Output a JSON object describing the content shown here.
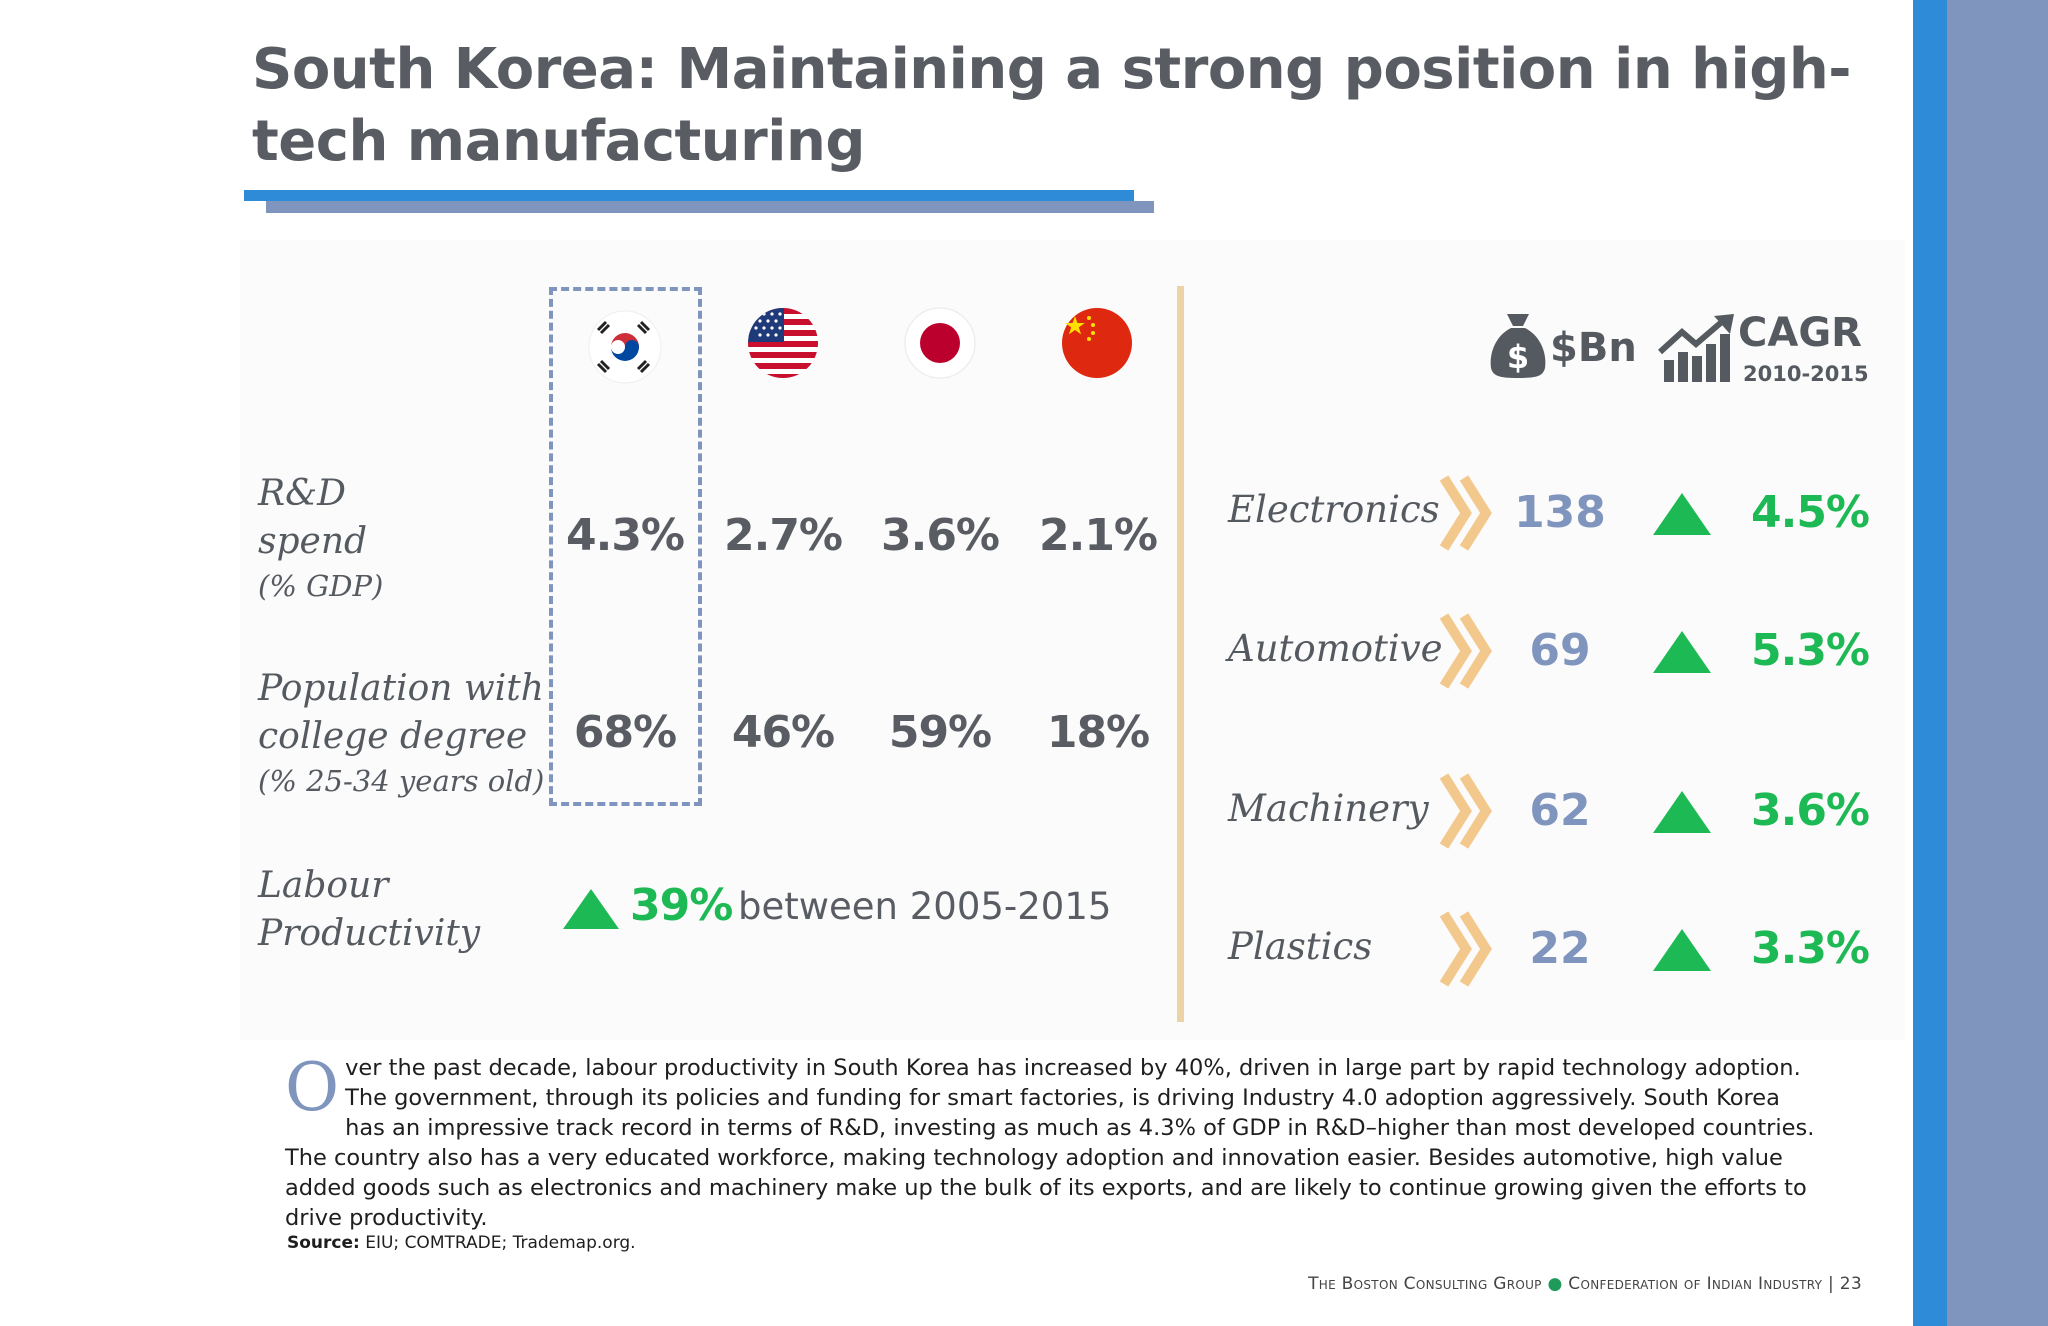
{
  "title": "South Korea: Maintaining a strong position in high-tech manufacturing",
  "colors": {
    "accent_blue": "#2e8bd8",
    "accent_grey_blue": "#7f95be",
    "growth_green": "#1db954",
    "divider_tan": "#edd2a6"
  },
  "countries": [
    {
      "name": "South Korea",
      "icon": "south-korea-flag-icon"
    },
    {
      "name": "United States",
      "icon": "us-flag-icon"
    },
    {
      "name": "Japan",
      "icon": "japan-flag-icon"
    },
    {
      "name": "China",
      "icon": "china-flag-icon"
    }
  ],
  "rd_spend": {
    "label": "R&D",
    "label2": "spend",
    "sub": "(% GDP)",
    "values": [
      "4.3%",
      "2.7%",
      "3.6%",
      "2.1%"
    ]
  },
  "college_degree": {
    "label": "Population with",
    "label2": "college degree",
    "sub": "(% 25-34 years old)",
    "values": [
      "68%",
      "46%",
      "59%",
      "18%"
    ]
  },
  "labour_productivity": {
    "label": "Labour",
    "label2": "Productivity",
    "value": "39%",
    "text": "between 2005-2015"
  },
  "exports_header": {
    "value_unit": "$Bn",
    "value_icon": "money-bag-icon",
    "cagr_label": "CAGR",
    "cagr_period": "2010-2015",
    "cagr_icon": "growth-chart-icon"
  },
  "sectors": [
    {
      "name": "Electronics",
      "value": "138",
      "cagr": "4.5%"
    },
    {
      "name": "Automotive",
      "value": "69",
      "cagr": "5.3%"
    },
    {
      "name": "Machinery",
      "value": "62",
      "cagr": "3.6%"
    },
    {
      "name": "Plastics",
      "value": "22",
      "cagr": "3.3%"
    }
  ],
  "body": {
    "dropcap": "O",
    "text": "ver the past decade, labour productivity in South Korea has increased by 40%, driven in large part by rapid technology adoption. The government, through its policies and funding for smart factories, is driving Industry 4.0 adoption aggressively. South  Korea has an impressive track record in terms of R&D, investing as much as 4.3% of GDP in R&D–higher than most developed countries. The country also has a very educated workforce, making technology adoption and innovation easier. Besides automotive, high value added goods such as electronics and machinery make up the bulk of its exports, and are likely to continue growing given the efforts to drive productivity."
  },
  "source": {
    "label": "Source:",
    "text": "EIU; COMTRADE; Trademap.org."
  },
  "footer": {
    "left": "The Boston Consulting Group",
    "right": "Confederation of Indian Industry",
    "separator": "|",
    "page": "23"
  }
}
